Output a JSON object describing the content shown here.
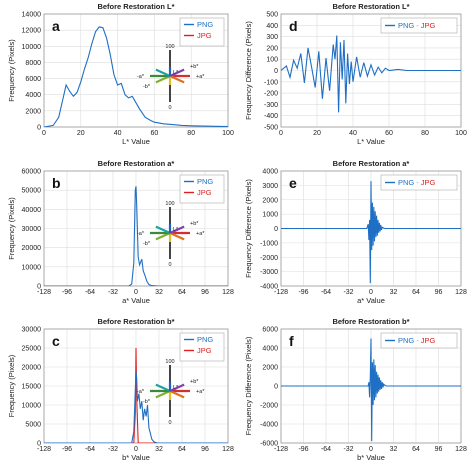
{
  "colors": {
    "png": "#1f6fc5",
    "jpg": "#e02020",
    "grid": "#dddddd",
    "axis": "#999999"
  },
  "inset": {
    "lstar": "L*",
    "top": "100",
    "bottom": "0",
    "pos_a": "+a*",
    "neg_a": "-a*",
    "pos_b": "+b*",
    "neg_b": "-b*"
  },
  "chart_data": [
    {
      "id": "a",
      "type": "line",
      "letter": "a",
      "title": "Before Restoration L*",
      "xlabel": "L* Value",
      "ylabel": "Frequency (Pixels)",
      "xlim": [
        0,
        100
      ],
      "ylim": [
        0,
        14000
      ],
      "xticks": [
        0,
        20,
        40,
        60,
        80,
        100
      ],
      "yticks": [
        0,
        2000,
        4000,
        6000,
        8000,
        10000,
        12000,
        14000
      ],
      "legend": [
        {
          "name": "PNG",
          "color": "png"
        },
        {
          "name": "JPG",
          "color": "jpg"
        }
      ],
      "legend_position": "top-right",
      "inset": true,
      "series": [
        {
          "name": "PNG",
          "color": "png",
          "x": [
            0,
            5,
            8,
            10,
            12,
            14,
            16,
            18,
            20,
            22,
            24,
            26,
            28,
            30,
            32,
            34,
            36,
            38,
            40,
            42,
            44,
            46,
            48,
            50,
            52,
            55,
            58,
            60,
            65,
            70,
            75,
            80,
            90,
            100
          ],
          "y": [
            0,
            200,
            1200,
            3200,
            5200,
            4400,
            3800,
            4300,
            5600,
            7200,
            8600,
            10300,
            11800,
            12400,
            12300,
            11000,
            9000,
            6500,
            5200,
            5400,
            4000,
            3600,
            3800,
            3000,
            2200,
            1200,
            800,
            600,
            400,
            300,
            200,
            150,
            100,
            50
          ]
        }
      ]
    },
    {
      "id": "b",
      "type": "line",
      "letter": "b",
      "title": "Before Restoration a*",
      "xlabel": "a* Value",
      "ylabel": "Frequency (Pixels)",
      "xlim": [
        -128,
        128
      ],
      "ylim": [
        0,
        60000
      ],
      "xticks": [
        -128,
        -96,
        -64,
        -32,
        0,
        32,
        64,
        96,
        128
      ],
      "yticks": [
        0,
        10000,
        20000,
        30000,
        40000,
        50000,
        60000
      ],
      "legend": [
        {
          "name": "PNG",
          "color": "png"
        },
        {
          "name": "JPG",
          "color": "jpg"
        }
      ],
      "legend_position": "top-right",
      "inset": true,
      "series": [
        {
          "name": "PNG",
          "color": "png",
          "x": [
            -128,
            -10,
            -6,
            -3,
            -1,
            0,
            1,
            3,
            5,
            8,
            10,
            13,
            15,
            18,
            22,
            30,
            128
          ],
          "y": [
            0,
            0,
            1000,
            12000,
            50000,
            52000,
            42000,
            15000,
            11000,
            14000,
            8000,
            5000,
            2500,
            800,
            200,
            0,
            0
          ]
        }
      ]
    },
    {
      "id": "c",
      "type": "line",
      "letter": "c",
      "title": "Before Restoration b*",
      "xlabel": "b* Value",
      "ylabel": "Frequency (Pixels)",
      "xlim": [
        -128,
        128
      ],
      "ylim": [
        0,
        30000
      ],
      "xticks": [
        -128,
        -96,
        -64,
        -32,
        0,
        32,
        64,
        96,
        128
      ],
      "yticks": [
        0,
        5000,
        10000,
        15000,
        20000,
        25000,
        30000
      ],
      "legend": [
        {
          "name": "PNG",
          "color": "png"
        },
        {
          "name": "JPG",
          "color": "jpg"
        }
      ],
      "legend_position": "top-right",
      "inset": true,
      "series": [
        {
          "name": "JPG",
          "color": "jpg",
          "x": [
            -128,
            -3,
            -1,
            0,
            1,
            3,
            128
          ],
          "y": [
            0,
            0,
            8000,
            25000,
            12000,
            0,
            0
          ]
        },
        {
          "name": "PNG",
          "color": "png",
          "x": [
            -128,
            -6,
            -3,
            -1,
            0,
            1,
            2,
            4,
            6,
            8,
            10,
            12,
            14,
            16,
            18,
            20,
            22,
            25,
            30,
            128
          ],
          "y": [
            0,
            0,
            3000,
            14000,
            19000,
            17000,
            11000,
            13000,
            9000,
            11000,
            6000,
            9000,
            7000,
            10000,
            4000,
            2500,
            1000,
            300,
            0,
            0
          ]
        }
      ]
    },
    {
      "id": "d",
      "type": "line",
      "letter": "d",
      "title": "Before Restoration L*",
      "xlabel": "L* Value",
      "ylabel": "Frequency Difference (Pixels)",
      "xlim": [
        0,
        100
      ],
      "ylim": [
        -500,
        500
      ],
      "xticks": [
        0,
        20,
        40,
        60,
        80,
        100
      ],
      "yticks": [
        -500,
        -400,
        -300,
        -200,
        -100,
        0,
        100,
        200,
        300,
        400,
        500
      ],
      "legend": [
        {
          "name": "PNG",
          "color": "png"
        },
        {
          "name": "-",
          "color": "axis"
        },
        {
          "name": "JPG",
          "color": "jpg"
        }
      ],
      "legend_position": "top-right",
      "inset": false,
      "series": [
        {
          "name": "PNG - JPG",
          "color": "png",
          "x": [
            0,
            3,
            5,
            7,
            9,
            11,
            13,
            15,
            17,
            19,
            21,
            23,
            25,
            27,
            29,
            30,
            31,
            32,
            33,
            34,
            35,
            36,
            37,
            38,
            39,
            40,
            42,
            44,
            46,
            48,
            50,
            52,
            54,
            56,
            58,
            60,
            65,
            70,
            80,
            90,
            100
          ],
          "y": [
            0,
            40,
            -60,
            90,
            20,
            150,
            -110,
            200,
            30,
            -150,
            170,
            -250,
            110,
            -180,
            230,
            100,
            310,
            -370,
            250,
            -80,
            270,
            -290,
            150,
            -120,
            80,
            -100,
            120,
            -60,
            70,
            -50,
            50,
            -40,
            30,
            -20,
            20,
            0,
            10,
            0,
            0,
            0,
            0
          ]
        }
      ]
    },
    {
      "id": "e",
      "type": "line",
      "letter": "e",
      "title": "Before Restoration a*",
      "xlabel": "a* Value",
      "ylabel": "Frequency Difference (Pixels)",
      "xlim": [
        -128,
        128
      ],
      "ylim": [
        -4000,
        4000
      ],
      "xticks": [
        -128,
        -96,
        -64,
        -32,
        0,
        32,
        64,
        96,
        128
      ],
      "yticks": [
        -4000,
        -3000,
        -2000,
        -1000,
        0,
        1000,
        2000,
        3000,
        4000
      ],
      "legend": [
        {
          "name": "PNG",
          "color": "png"
        },
        {
          "name": "-",
          "color": "axis"
        },
        {
          "name": "JPG",
          "color": "jpg"
        }
      ],
      "legend_position": "top-right",
      "inset": false,
      "series": [
        {
          "name": "PNG - JPG",
          "color": "png",
          "x": [
            -128,
            -6,
            -4,
            -3,
            -2,
            -1,
            0,
            1,
            2,
            3,
            4,
            5,
            6,
            7,
            8,
            9,
            10,
            11,
            12,
            13,
            14,
            15,
            16,
            18,
            20,
            128
          ],
          "y": [
            0,
            0,
            300,
            -800,
            600,
            -3800,
            3300,
            -1500,
            1800,
            -1200,
            1500,
            -900,
            1200,
            -600,
            900,
            -500,
            600,
            -300,
            400,
            -200,
            250,
            -100,
            80,
            30,
            0,
            0
          ]
        }
      ]
    },
    {
      "id": "f",
      "type": "line",
      "letter": "f",
      "title": "Before Restoration b*",
      "xlabel": "b* Value",
      "ylabel": "Frequency Difference (Pixels)",
      "xlim": [
        -128,
        128
      ],
      "ylim": [
        -6000,
        6000
      ],
      "xticks": [
        -128,
        -96,
        -64,
        -32,
        0,
        32,
        64,
        96,
        128
      ],
      "yticks": [
        -6000,
        -4000,
        -2000,
        0,
        2000,
        4000,
        6000
      ],
      "legend": [
        {
          "name": "PNG",
          "color": "png"
        },
        {
          "name": "-",
          "color": "axis"
        },
        {
          "name": "JPG",
          "color": "jpg"
        }
      ],
      "legend_position": "top-right",
      "inset": false,
      "series": [
        {
          "name": "PNG - JPG",
          "color": "png",
          "x": [
            -128,
            -4,
            -3,
            -2,
            -1,
            0,
            1,
            2,
            3,
            4,
            5,
            6,
            7,
            8,
            9,
            10,
            11,
            12,
            13,
            14,
            15,
            16,
            17,
            18,
            20,
            22,
            128
          ],
          "y": [
            0,
            0,
            400,
            -1200,
            900,
            5000,
            -5800,
            2500,
            -2000,
            2800,
            -1500,
            2200,
            -1200,
            1500,
            -800,
            1200,
            -600,
            900,
            -400,
            600,
            -300,
            400,
            -150,
            200,
            50,
            0,
            0
          ]
        }
      ]
    }
  ]
}
